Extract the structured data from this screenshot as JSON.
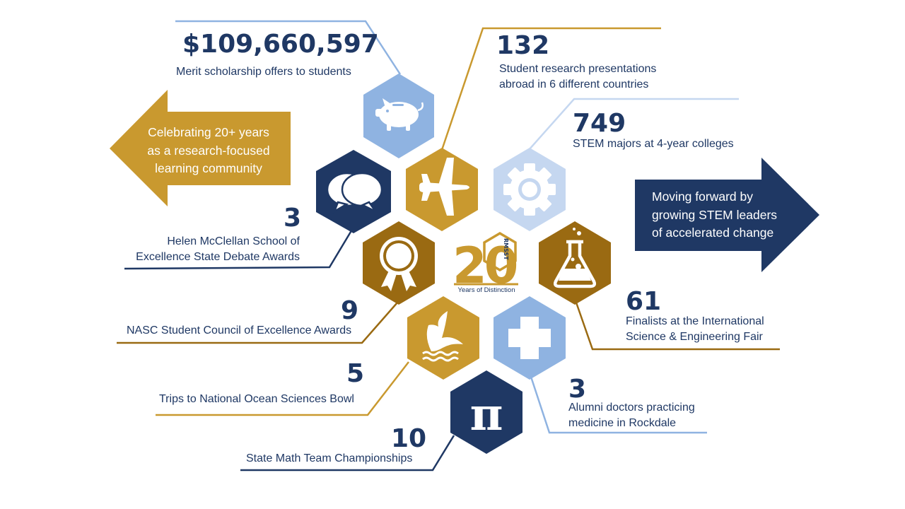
{
  "colors": {
    "navy": "#1f3864",
    "gold": "#c9992f",
    "bronze": "#9a6a12",
    "light_blue": "#8fb3e1",
    "pale_blue": "#c5d7f0",
    "white": "#ffffff"
  },
  "left_arrow": {
    "lines": [
      "Celebrating 20+ years",
      "as a research-focused",
      "learning community"
    ]
  },
  "right_arrow": {
    "lines": [
      "Moving forward by",
      "growing STEM leaders",
      "of accelerated change"
    ]
  },
  "logo": {
    "number": "20",
    "initials": "RMSST",
    "caption": "Years of Distinction"
  },
  "stats": [
    {
      "value": "$109,660,597",
      "label": [
        "Merit scholarship offers to students"
      ],
      "icon": "piggy-bank-icon"
    },
    {
      "value": "132",
      "label": [
        "Student research presentations",
        "abroad in 6 different countries"
      ],
      "icon": "airplane-icon"
    },
    {
      "value": "749",
      "label": [
        "STEM majors at 4-year colleges"
      ],
      "icon": "gear-icon"
    },
    {
      "value": "3",
      "label": [
        "Helen McClellan School of",
        "Excellence State Debate Awards"
      ],
      "icon": "speech-bubbles-icon"
    },
    {
      "value": "9",
      "label": [
        "NASC Student Council of Excellence Awards"
      ],
      "icon": "award-ribbon-icon"
    },
    {
      "value": "61",
      "label": [
        "Finalists at the International",
        "Science & Engineering Fair"
      ],
      "icon": "flask-icon"
    },
    {
      "value": "5",
      "label": [
        "Trips to National Ocean Sciences Bowl"
      ],
      "icon": "whale-tail-icon"
    },
    {
      "value": "3",
      "label": [
        "Alumni doctors practicing",
        "medicine in Rockdale"
      ],
      "icon": "medical-cross-icon"
    },
    {
      "value": "10",
      "label": [
        "State Math Team Championships"
      ],
      "icon": "pi-icon"
    }
  ]
}
